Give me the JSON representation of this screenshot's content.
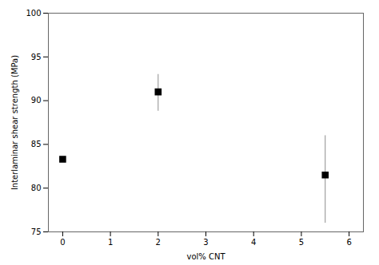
{
  "chart_data": {
    "type": "scatter",
    "xlabel": "vol% CNT",
    "ylabel": "Interlaminar shear strength (MPa)",
    "x": [
      0,
      2,
      5.5
    ],
    "values": [
      83.3,
      91.0,
      81.5
    ],
    "error_lower": [
      0,
      2.2,
      5.5
    ],
    "error_upper": [
      0,
      2.0,
      4.5
    ],
    "color": "black",
    "marker": "square",
    "xlim": [
      -0.3,
      6.3
    ],
    "xticks": [
      0,
      1,
      2,
      3,
      4,
      5,
      6
    ],
    "ylim": [
      75,
      100
    ],
    "yticks": [
      75,
      80,
      85,
      90,
      95,
      100
    ],
    "grid": false
  }
}
